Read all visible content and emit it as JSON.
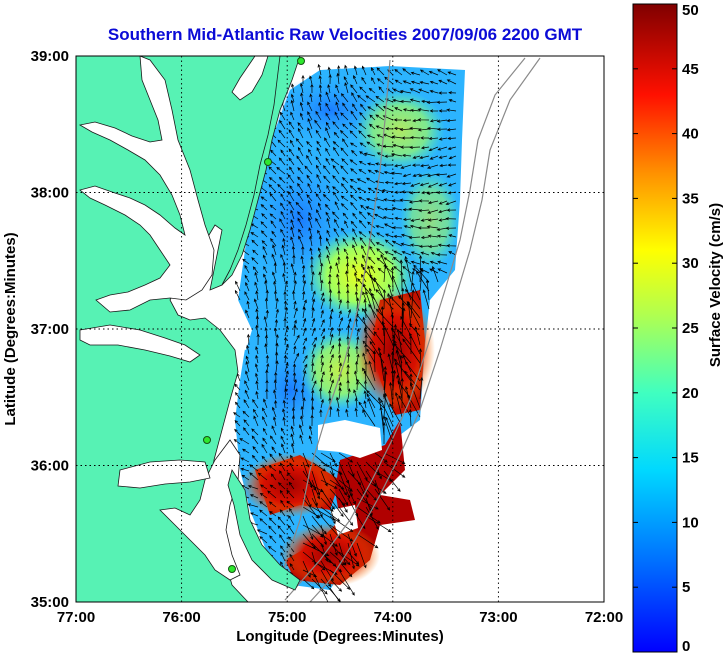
{
  "title": "Southern Mid-Atlantic Raw Velocities 2007/09/06 2200 GMT",
  "colors": {
    "title": "#0b0bd6",
    "land": "#57f2b4",
    "background": "#ffffff"
  },
  "map": {
    "xlabel": "Longitude (Degrees:Minutes)",
    "ylabel": "Latitude (Degrees:Minutes)",
    "xlim": [
      -77,
      -72
    ],
    "ylim": [
      35,
      39
    ],
    "xticks": [
      "77:00",
      "76:00",
      "75:00",
      "74:00",
      "73:00",
      "72:00"
    ],
    "yticks": [
      "35:00",
      "36:00",
      "37:00",
      "38:00",
      "39:00"
    ],
    "grid": "dotted"
  },
  "colorbar": {
    "label": "Surface Velocity (cm/s)",
    "range": [
      0,
      50
    ],
    "ticks": [
      "0",
      "5",
      "10",
      "15",
      "20",
      "25",
      "30",
      "35",
      "40",
      "45",
      "50"
    ],
    "colormap": "jet"
  },
  "icons": {
    "station": "green-dot",
    "vectors": "black-arrows"
  }
}
